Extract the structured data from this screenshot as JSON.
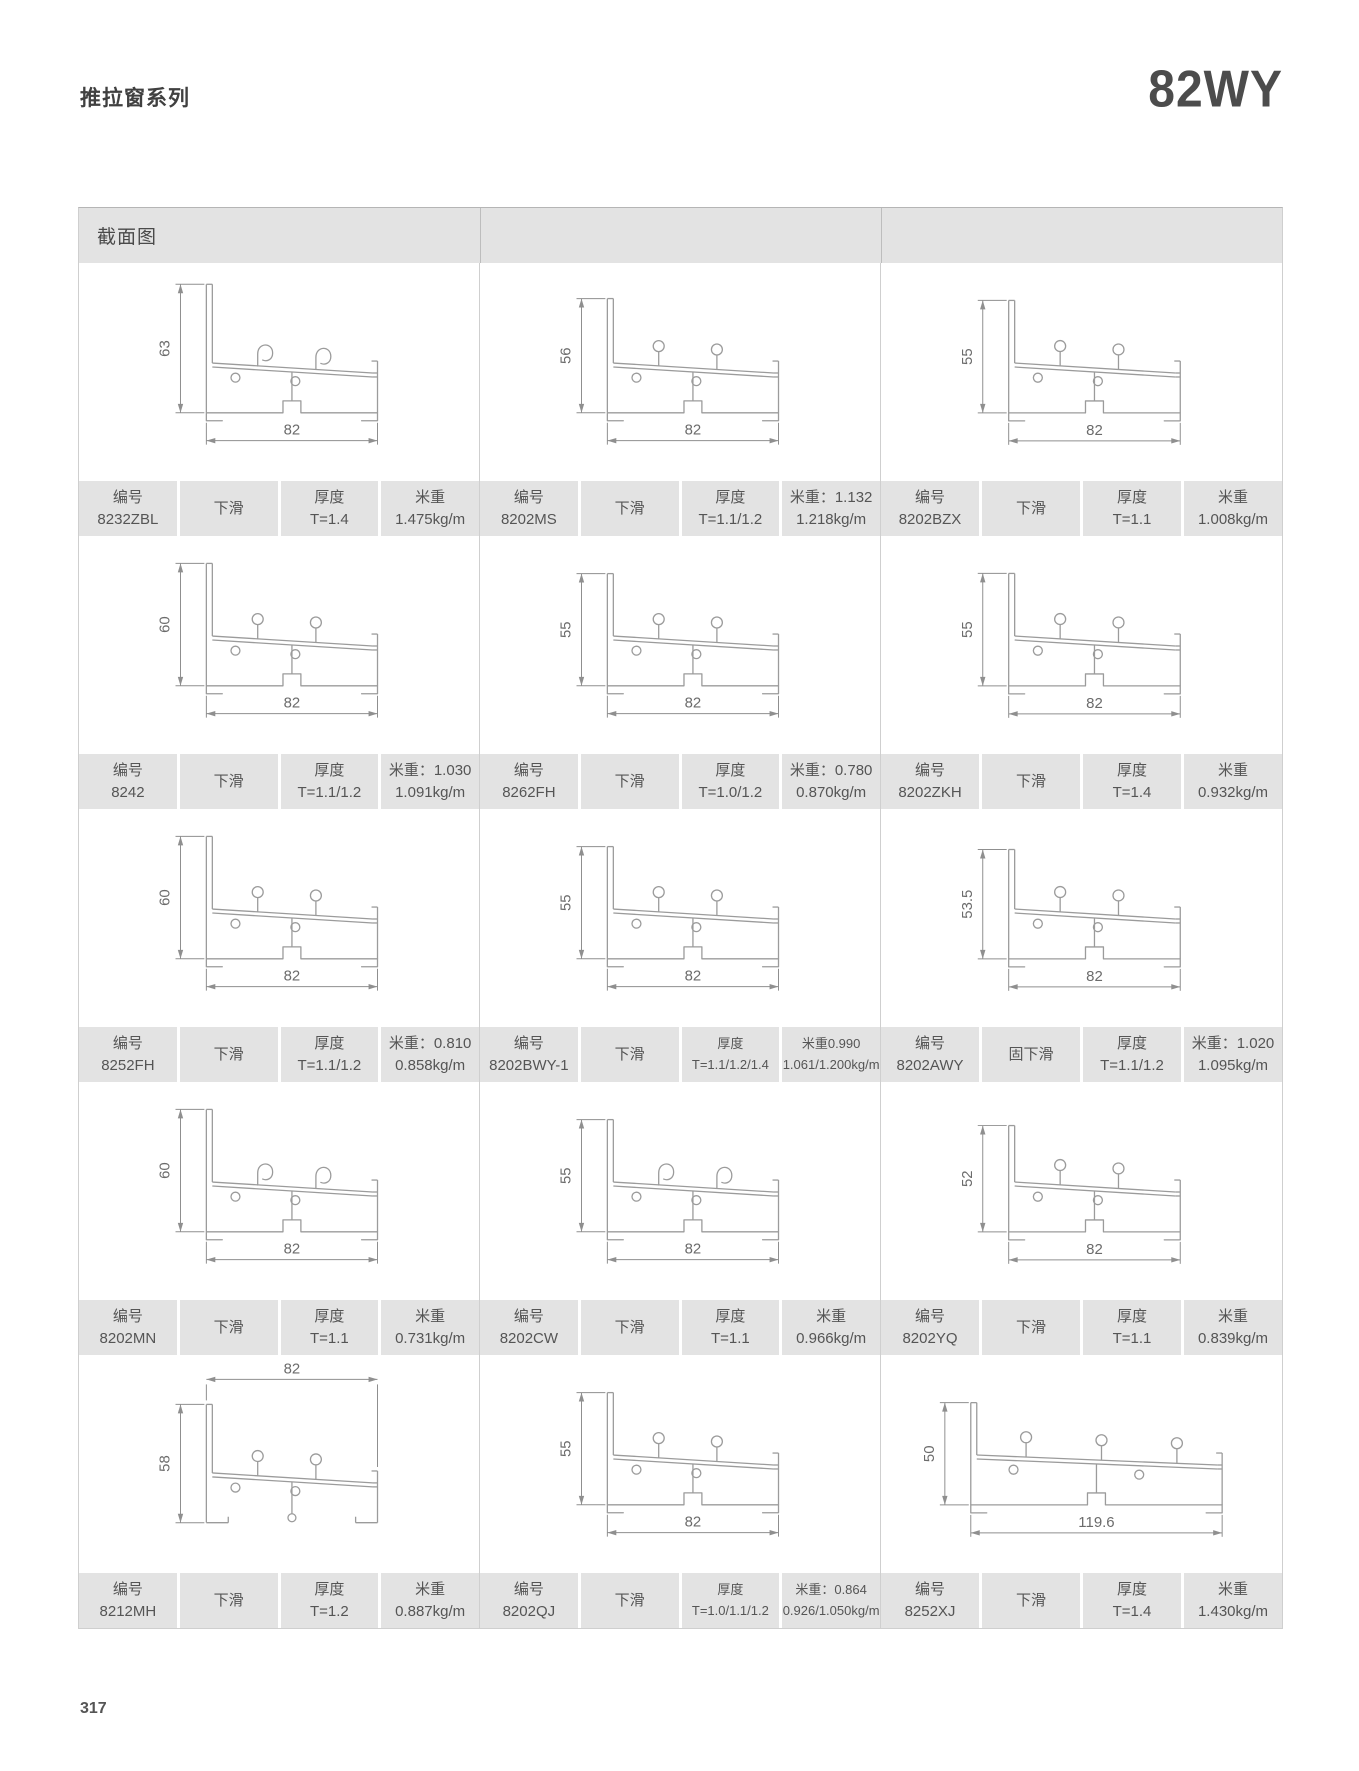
{
  "page": {
    "series_title": "推拉窗系列",
    "model": "82WY",
    "section_header": "截面图",
    "page_number": "317"
  },
  "labels": {
    "code": "编号",
    "thickness": "厚度"
  },
  "colors": {
    "bar_bg": "#e3e3e3",
    "table_border": "#cfcfcf",
    "drawing_line": "#9b9b9b",
    "dim_line": "#8f8f8f",
    "dim_text": "#6b6b6b",
    "text": "#555555"
  },
  "cells": [
    {
      "code": "8232ZBL",
      "type": "下滑",
      "thickness": "T=1.4",
      "weight_top": "米重",
      "weight_bottom": "1.475kg/m",
      "dim_h": "63",
      "dim_w": "82",
      "variant": "hooks"
    },
    {
      "code": "8202MS",
      "type": "下滑",
      "thickness": "T=1.1/1.2",
      "weight_top": "米重：1.132",
      "weight_bottom": "1.218kg/m",
      "dim_h": "56",
      "dim_w": "82",
      "variant": "slide"
    },
    {
      "code": "8202BZX",
      "type": "下滑",
      "thickness": "T=1.1",
      "weight_top": "米重",
      "weight_bottom": "1.008kg/m",
      "dim_h": "55",
      "dim_w": "82",
      "variant": "slide"
    },
    {
      "code": "8242",
      "type": "下滑",
      "thickness": "T=1.1/1.2",
      "weight_top": "米重：1.030",
      "weight_bottom": "1.091kg/m",
      "dim_h": "60",
      "dim_w": "82",
      "variant": "slide"
    },
    {
      "code": "8262FH",
      "type": "下滑",
      "thickness": "T=1.0/1.2",
      "weight_top": "米重：0.780",
      "weight_bottom": "0.870kg/m",
      "dim_h": "55",
      "dim_w": "82",
      "variant": "slide"
    },
    {
      "code": "8202ZKH",
      "type": "下滑",
      "thickness": "T=1.4",
      "weight_top": "米重",
      "weight_bottom": "0.932kg/m",
      "dim_h": "55",
      "dim_w": "82",
      "variant": "slide"
    },
    {
      "code": "8252FH",
      "type": "下滑",
      "thickness": "T=1.1/1.2",
      "weight_top": "米重：0.810",
      "weight_bottom": "0.858kg/m",
      "dim_h": "60",
      "dim_w": "82",
      "variant": "slide"
    },
    {
      "code": "8202BWY-1",
      "type": "下滑",
      "thickness": "T=1.1/1.2/1.4",
      "weight_top": "米重0.990",
      "weight_bottom": "1.061/1.200kg/m",
      "dim_h": "55",
      "dim_w": "82",
      "variant": "slide"
    },
    {
      "code": "8202AWY",
      "type": "固下滑",
      "thickness": "T=1.1/1.2",
      "weight_top": "米重：1.020",
      "weight_bottom": "1.095kg/m",
      "dim_h": "53.5",
      "dim_w": "82",
      "variant": "slide"
    },
    {
      "code": "8202MN",
      "type": "下滑",
      "thickness": "T=1.1",
      "weight_top": "米重",
      "weight_bottom": "0.731kg/m",
      "dim_h": "60",
      "dim_w": "82",
      "variant": "hooks"
    },
    {
      "code": "8202CW",
      "type": "下滑",
      "thickness": "T=1.1",
      "weight_top": "米重",
      "weight_bottom": "0.966kg/m",
      "dim_h": "55",
      "dim_w": "82",
      "variant": "hooks"
    },
    {
      "code": "8202YQ",
      "type": "下滑",
      "thickness": "T=1.1",
      "weight_top": "米重",
      "weight_bottom": "0.839kg/m",
      "dim_h": "52",
      "dim_w": "82",
      "variant": "slide"
    },
    {
      "code": "8212MH",
      "type": "下滑",
      "thickness": "T=1.2",
      "weight_top": "米重",
      "weight_bottom": "0.887kg/m",
      "dim_h": "58",
      "dim_w": "82",
      "variant": "open"
    },
    {
      "code": "8202QJ",
      "type": "下滑",
      "thickness": "T=1.0/1.1/1.2",
      "weight_top": "米重：0.864",
      "weight_bottom": "0.926/1.050kg/m",
      "dim_h": "55",
      "dim_w": "82",
      "variant": "slide"
    },
    {
      "code": "8252XJ",
      "type": "下滑",
      "thickness": "T=1.4",
      "weight_top": "米重",
      "weight_bottom": "1.430kg/m",
      "dim_h": "50",
      "dim_w": "119.6",
      "variant": "wide"
    }
  ]
}
